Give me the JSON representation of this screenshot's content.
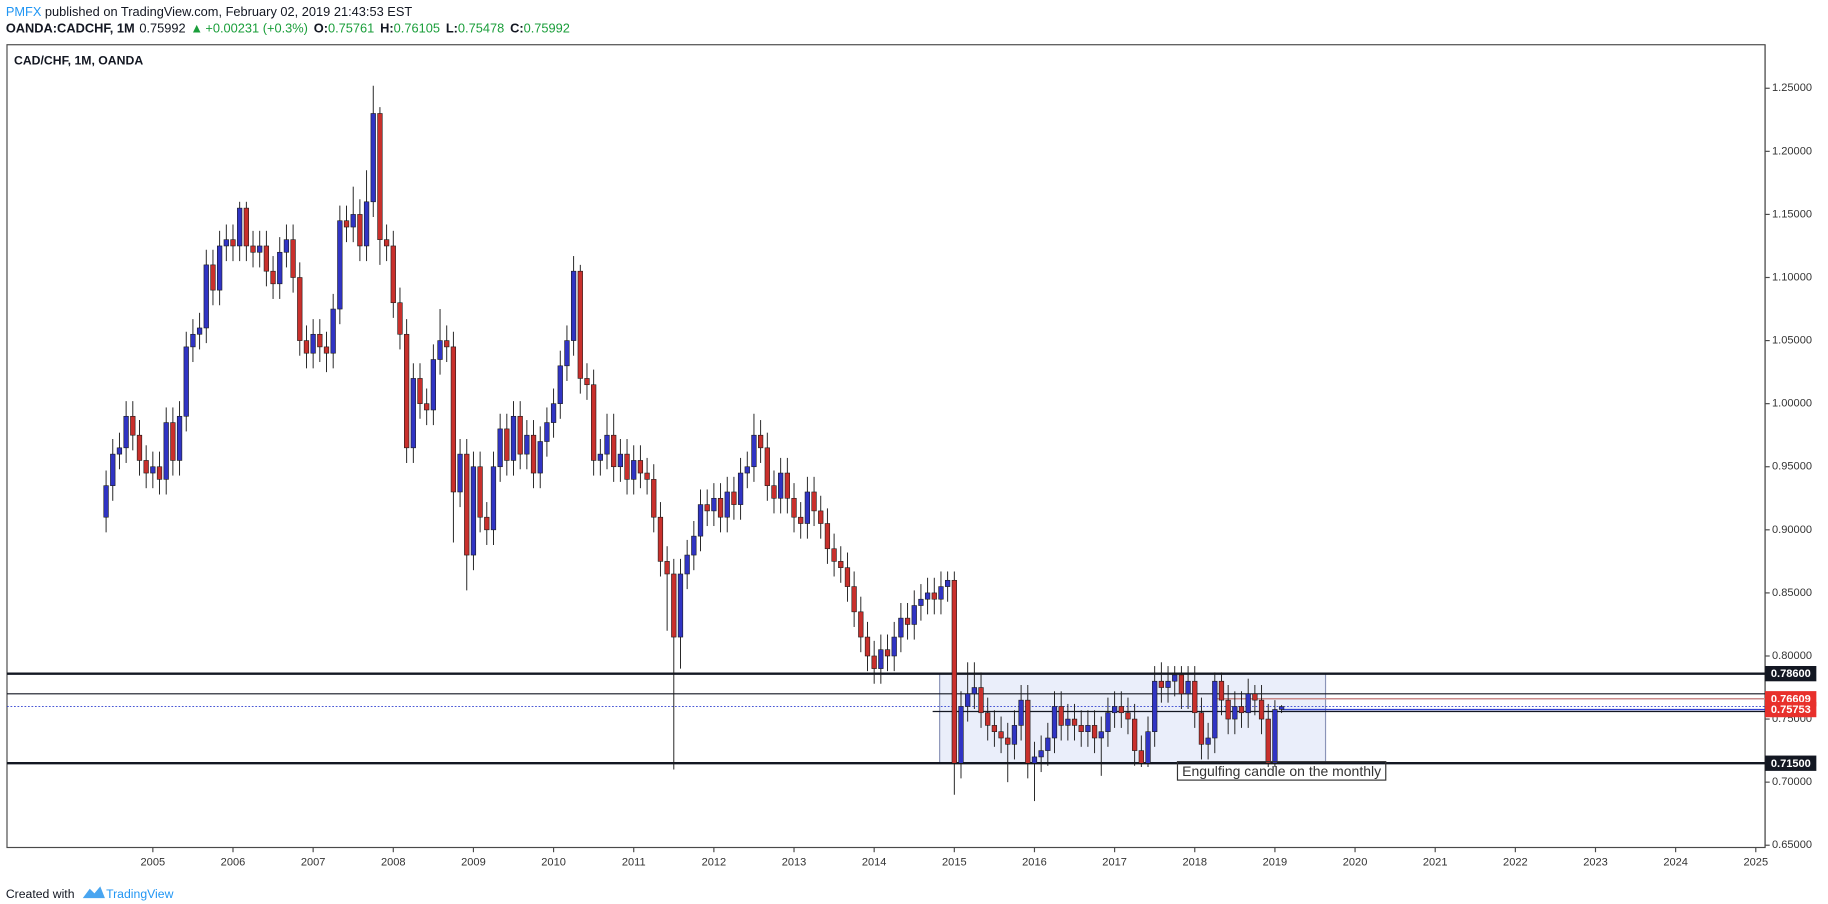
{
  "header": {
    "author": "PMFX",
    "published": "published on TradingView.com, February 02, 2019 21:43:53 EST",
    "symbol": "OANDA:CADCHF, 1M",
    "price": "0.75992",
    "arrow": "▲",
    "change": "+0.00231 (+0.3%)",
    "ohlc": [
      {
        "label": "O:",
        "value": "0.75761"
      },
      {
        "label": "H:",
        "value": "0.76105"
      },
      {
        "label": "L:",
        "value": "0.75478"
      },
      {
        "label": "C:",
        "value": "0.75992"
      }
    ]
  },
  "footer": {
    "created": "Created with",
    "brand": "TradingView"
  },
  "chart_data": {
    "type": "candlestick",
    "title": "CAD/CHF, 1M, OANDA",
    "up_color": "#3034c4",
    "down_color": "#c9302c",
    "categories": [
      null,
      null,
      null,
      null,
      null,
      null,
      null,
      "2005",
      null,
      null,
      null,
      null,
      null,
      null,
      null,
      null,
      null,
      null,
      null,
      "2006",
      null,
      null,
      null,
      null,
      null,
      null,
      null,
      null,
      null,
      null,
      null,
      "2007",
      null,
      null,
      null,
      null,
      null,
      null,
      null,
      null,
      null,
      null,
      null,
      "2008",
      null,
      null,
      null,
      null,
      null,
      null,
      null,
      null,
      null,
      null,
      null,
      "2009",
      null,
      null,
      null,
      null,
      null,
      null,
      null,
      null,
      null,
      null,
      null,
      "2010",
      null,
      null,
      null,
      null,
      null,
      null,
      null,
      null,
      null,
      null,
      null,
      "2011",
      null,
      null,
      null,
      null,
      null,
      null,
      null,
      null,
      null,
      null,
      null,
      "2012",
      null,
      null,
      null,
      null,
      null,
      null,
      null,
      null,
      null,
      null,
      null,
      "2013",
      null,
      null,
      null,
      null,
      null,
      null,
      null,
      null,
      null,
      null,
      null,
      "2014",
      null,
      null,
      null,
      null,
      null,
      null,
      null,
      null,
      null,
      null,
      null,
      "2015",
      null,
      null,
      null,
      null,
      null,
      null,
      null,
      null,
      null,
      null,
      null,
      "2016",
      null,
      null,
      null,
      null,
      null,
      null,
      null,
      null,
      null,
      null,
      null,
      "2017",
      null,
      null,
      null,
      null,
      null,
      null,
      null,
      null,
      null,
      null,
      null,
      "2018",
      null,
      null,
      null,
      null,
      null,
      null,
      null,
      null,
      null,
      null,
      null,
      "2019",
      null,
      null,
      null,
      null,
      null,
      null,
      null,
      null,
      null,
      null,
      null,
      "2020",
      null,
      null,
      null,
      null,
      null,
      null,
      null,
      null,
      null,
      null,
      null,
      "2021",
      null,
      null,
      null,
      null,
      null,
      null,
      null,
      null,
      null,
      null,
      null,
      "2022",
      null,
      null,
      null,
      null,
      null,
      null,
      null,
      null,
      null,
      null,
      null,
      "2023",
      null,
      null,
      null,
      null,
      null,
      null,
      null,
      null,
      null,
      null,
      null,
      "2024",
      null,
      null,
      null,
      null,
      null,
      null,
      null,
      null,
      null,
      null,
      null,
      "2025",
      null
    ],
    "open": [
      0.91,
      0.935,
      0.96,
      0.965,
      0.99,
      0.975,
      0.955,
      0.945,
      0.95,
      0.94,
      0.985,
      0.955,
      0.99,
      1.045,
      1.055,
      1.06,
      1.11,
      1.09,
      1.125,
      1.13,
      1.125,
      1.155,
      1.125,
      1.12,
      1.125,
      1.105,
      1.095,
      1.12,
      1.13,
      1.1,
      1.05,
      1.04,
      1.055,
      1.045,
      1.04,
      1.075,
      1.145,
      1.14,
      1.15,
      1.125,
      1.16,
      1.23,
      1.13,
      1.125,
      1.08,
      1.055,
      0.965,
      1.02,
      1.0,
      0.995,
      1.035,
      1.05,
      1.045,
      0.93,
      0.96,
      0.88,
      0.95,
      0.91,
      0.9,
      0.95,
      0.98,
      0.955,
      0.99,
      0.96,
      0.975,
      0.945,
      0.97,
      0.985,
      1.0,
      1.03,
      1.05,
      1.105,
      1.02,
      1.015,
      0.955,
      0.96,
      0.975,
      0.95,
      0.96,
      0.94,
      0.955,
      0.945,
      0.94,
      0.91,
      0.875,
      0.865,
      0.815,
      0.865,
      0.88,
      0.895,
      0.92,
      0.915,
      0.925,
      0.91,
      0.93,
      0.92,
      0.945,
      0.95,
      0.975,
      0.965,
      0.935,
      0.925,
      0.945,
      0.925,
      0.91,
      0.905,
      0.93,
      0.915,
      0.905,
      0.885,
      0.875,
      0.87,
      0.855,
      0.835,
      0.815,
      0.8,
      0.79,
      0.805,
      0.8,
      0.815,
      0.83,
      0.825,
      0.84,
      0.845,
      0.85,
      0.845,
      0.855,
      0.86,
      0.715,
      0.76,
      0.77,
      0.775,
      0.755,
      0.745,
      0.74,
      0.735,
      0.73,
      0.745,
      0.765,
      0.715,
      0.72,
      0.725,
      0.735,
      0.76,
      0.745,
      0.75,
      0.745,
      0.74,
      0.745,
      0.735,
      0.74,
      0.755,
      0.76,
      0.755,
      0.75,
      0.725,
      0.715,
      0.74,
      0.78,
      0.775,
      0.78,
      0.785,
      0.77,
      0.78,
      0.755,
      0.73,
      0.735,
      0.78,
      0.765,
      0.75,
      0.76,
      0.755,
      0.77,
      0.765,
      0.75,
      0.715,
      0.75761,
      null,
      null,
      null,
      null,
      null,
      null,
      null,
      null,
      null,
      null,
      null,
      null,
      null,
      null,
      null,
      null,
      null,
      null,
      null,
      null,
      null,
      null,
      null,
      null,
      null,
      null,
      null,
      null,
      null,
      null,
      null,
      null,
      null,
      null,
      null,
      null,
      null,
      null,
      null,
      null,
      null,
      null,
      null,
      null,
      null,
      null,
      null,
      null,
      null,
      null,
      null,
      null,
      null,
      null,
      null,
      null,
      null,
      null,
      null,
      null,
      null,
      null,
      null,
      null,
      null,
      null,
      null,
      null,
      null,
      null,
      null,
      null
    ],
    "high": [
      0.947,
      0.972,
      0.977,
      1.002,
      1.002,
      0.987,
      0.967,
      0.962,
      0.962,
      0.997,
      0.997,
      1.002,
      1.057,
      1.067,
      1.072,
      1.122,
      1.122,
      1.137,
      1.142,
      1.142,
      1.16,
      1.16,
      1.137,
      1.137,
      1.137,
      1.117,
      1.132,
      1.142,
      1.142,
      1.112,
      1.062,
      1.067,
      1.067,
      1.057,
      1.087,
      1.157,
      1.157,
      1.172,
      1.162,
      1.185,
      1.252,
      1.235,
      1.142,
      1.137,
      1.092,
      1.067,
      1.032,
      1.032,
      1.012,
      1.047,
      1.075,
      1.062,
      1.057,
      0.972,
      0.972,
      0.962,
      0.962,
      0.922,
      0.962,
      0.992,
      0.992,
      1.002,
      1.002,
      0.987,
      0.987,
      0.982,
      0.997,
      1.012,
      1.042,
      1.062,
      1.117,
      1.11,
      1.032,
      1.027,
      0.972,
      0.992,
      0.992,
      0.972,
      0.972,
      0.967,
      0.967,
      0.957,
      0.952,
      0.922,
      0.887,
      0.877,
      0.877,
      0.892,
      0.907,
      0.932,
      0.932,
      0.937,
      0.937,
      0.942,
      0.942,
      0.957,
      0.962,
      0.992,
      0.987,
      0.977,
      0.947,
      0.957,
      0.957,
      0.937,
      0.922,
      0.942,
      0.942,
      0.927,
      0.917,
      0.897,
      0.887,
      0.882,
      0.867,
      0.847,
      0.827,
      0.812,
      0.817,
      0.817,
      0.827,
      0.842,
      0.842,
      0.852,
      0.857,
      0.862,
      0.862,
      0.867,
      0.867,
      0.867,
      0.772,
      0.795,
      0.795,
      0.787,
      0.767,
      0.757,
      0.752,
      0.747,
      0.757,
      0.777,
      0.777,
      0.732,
      0.737,
      0.747,
      0.772,
      0.772,
      0.762,
      0.762,
      0.757,
      0.757,
      0.757,
      0.752,
      0.767,
      0.772,
      0.772,
      0.767,
      0.762,
      0.737,
      0.752,
      0.792,
      0.795,
      0.792,
      0.792,
      0.792,
      0.792,
      0.792,
      0.767,
      0.747,
      0.787,
      0.787,
      0.777,
      0.772,
      0.772,
      0.782,
      0.777,
      0.777,
      0.762,
      0.765,
      0.76105,
      null,
      null,
      null,
      null,
      null,
      null,
      null,
      null,
      null,
      null,
      null,
      null,
      null,
      null,
      null,
      null,
      null,
      null,
      null,
      null,
      null,
      null,
      null,
      null,
      null,
      null,
      null,
      null,
      null,
      null,
      null,
      null,
      null,
      null,
      null,
      null,
      null,
      null,
      null,
      null,
      null,
      null,
      null,
      null,
      null,
      null,
      null,
      null,
      null,
      null,
      null,
      null,
      null,
      null,
      null,
      null,
      null,
      null,
      null,
      null,
      null,
      null,
      null,
      null,
      null,
      null,
      null,
      null,
      null,
      null,
      null,
      null
    ],
    "low": [
      0.898,
      0.923,
      0.948,
      0.953,
      0.963,
      0.943,
      0.933,
      0.933,
      0.928,
      0.928,
      0.943,
      0.943,
      0.978,
      1.033,
      1.043,
      1.048,
      1.078,
      1.078,
      1.113,
      1.113,
      1.113,
      1.113,
      1.108,
      1.108,
      1.093,
      1.083,
      1.083,
      1.108,
      1.088,
      1.038,
      1.028,
      1.028,
      1.033,
      1.025,
      1.028,
      1.063,
      1.128,
      1.128,
      1.113,
      1.113,
      1.148,
      1.11,
      1.113,
      1.068,
      1.043,
      0.953,
      0.953,
      0.988,
      0.983,
      0.983,
      1.023,
      1.033,
      0.89,
      0.918,
      0.852,
      0.868,
      0.898,
      0.888,
      0.888,
      0.938,
      0.943,
      0.943,
      0.948,
      0.948,
      0.933,
      0.933,
      0.958,
      0.973,
      0.988,
      1.018,
      1.038,
      1.008,
      1.003,
      0.943,
      0.943,
      0.948,
      0.938,
      0.938,
      0.928,
      0.928,
      0.933,
      0.928,
      0.898,
      0.863,
      0.82,
      0.71,
      0.79,
      0.853,
      0.868,
      0.883,
      0.903,
      0.903,
      0.898,
      0.898,
      0.908,
      0.908,
      0.933,
      0.938,
      0.953,
      0.923,
      0.913,
      0.913,
      0.913,
      0.898,
      0.893,
      0.893,
      0.903,
      0.893,
      0.873,
      0.863,
      0.858,
      0.843,
      0.823,
      0.803,
      0.788,
      0.778,
      0.778,
      0.788,
      0.788,
      0.803,
      0.813,
      0.813,
      0.828,
      0.833,
      0.833,
      0.833,
      0.843,
      0.69,
      0.703,
      0.748,
      0.758,
      0.743,
      0.733,
      0.728,
      0.723,
      0.7,
      0.718,
      0.733,
      0.703,
      0.685,
      0.708,
      0.713,
      0.723,
      0.733,
      0.733,
      0.733,
      0.728,
      0.728,
      0.723,
      0.705,
      0.728,
      0.743,
      0.743,
      0.738,
      0.713,
      0.712,
      0.712,
      0.728,
      0.763,
      0.763,
      0.768,
      0.758,
      0.758,
      0.743,
      0.718,
      0.718,
      0.723,
      0.753,
      0.738,
      0.738,
      0.743,
      0.743,
      0.753,
      0.738,
      0.712,
      0.712,
      0.75478,
      null,
      null,
      null,
      null,
      null,
      null,
      null,
      null,
      null,
      null,
      null,
      null,
      null,
      null,
      null,
      null,
      null,
      null,
      null,
      null,
      null,
      null,
      null,
      null,
      null,
      null,
      null,
      null,
      null,
      null,
      null,
      null,
      null,
      null,
      null,
      null,
      null,
      null,
      null,
      null,
      null,
      null,
      null,
      null,
      null,
      null,
      null,
      null,
      null,
      null,
      null,
      null,
      null,
      null,
      null,
      null,
      null,
      null,
      null,
      null,
      null,
      null,
      null,
      null,
      null,
      null,
      null,
      null,
      null,
      null,
      null,
      null
    ],
    "close": [
      0.935,
      0.96,
      0.965,
      0.99,
      0.975,
      0.955,
      0.945,
      0.95,
      0.94,
      0.985,
      0.955,
      0.99,
      1.045,
      1.055,
      1.06,
      1.11,
      1.09,
      1.125,
      1.13,
      1.125,
      1.155,
      1.125,
      1.12,
      1.125,
      1.105,
      1.095,
      1.12,
      1.13,
      1.1,
      1.05,
      1.04,
      1.055,
      1.045,
      1.04,
      1.075,
      1.145,
      1.14,
      1.15,
      1.125,
      1.16,
      1.23,
      1.13,
      1.125,
      1.08,
      1.055,
      0.965,
      1.02,
      1.0,
      0.995,
      1.035,
      1.05,
      1.045,
      0.93,
      0.96,
      0.88,
      0.95,
      0.91,
      0.9,
      0.95,
      0.98,
      0.955,
      0.99,
      0.96,
      0.975,
      0.945,
      0.97,
      0.985,
      1.0,
      1.03,
      1.05,
      1.105,
      1.02,
      1.015,
      0.955,
      0.96,
      0.975,
      0.95,
      0.96,
      0.94,
      0.955,
      0.945,
      0.94,
      0.91,
      0.875,
      0.865,
      0.815,
      0.865,
      0.88,
      0.895,
      0.92,
      0.915,
      0.925,
      0.91,
      0.93,
      0.92,
      0.945,
      0.95,
      0.975,
      0.965,
      0.935,
      0.925,
      0.945,
      0.925,
      0.91,
      0.905,
      0.93,
      0.915,
      0.905,
      0.885,
      0.875,
      0.87,
      0.855,
      0.835,
      0.815,
      0.8,
      0.79,
      0.805,
      0.8,
      0.815,
      0.83,
      0.825,
      0.84,
      0.845,
      0.85,
      0.845,
      0.855,
      0.86,
      0.715,
      0.76,
      0.77,
      0.775,
      0.755,
      0.745,
      0.74,
      0.735,
      0.73,
      0.745,
      0.765,
      0.715,
      0.72,
      0.725,
      0.735,
      0.76,
      0.745,
      0.75,
      0.745,
      0.74,
      0.745,
      0.735,
      0.74,
      0.755,
      0.76,
      0.755,
      0.75,
      0.725,
      0.715,
      0.74,
      0.78,
      0.775,
      0.78,
      0.785,
      0.77,
      0.78,
      0.755,
      0.73,
      0.735,
      0.78,
      0.765,
      0.75,
      0.76,
      0.755,
      0.77,
      0.765,
      0.75,
      0.715,
      0.75761,
      0.75992,
      null,
      null,
      null,
      null,
      null,
      null,
      null,
      null,
      null,
      null,
      null,
      null,
      null,
      null,
      null,
      null,
      null,
      null,
      null,
      null,
      null,
      null,
      null,
      null,
      null,
      null,
      null,
      null,
      null,
      null,
      null,
      null,
      null,
      null,
      null,
      null,
      null,
      null,
      null,
      null,
      null,
      null,
      null,
      null,
      null,
      null,
      null,
      null,
      null,
      null,
      null,
      null,
      null,
      null,
      null,
      null,
      null,
      null,
      null,
      null,
      null,
      null,
      null,
      null,
      null,
      null,
      null,
      null,
      null,
      null,
      null,
      null
    ],
    "ylim": [
      0.6482,
      1.2845
    ],
    "yticks": [
      {
        "value": 0.65,
        "label": "0.65000"
      },
      {
        "value": 0.7,
        "label": "0.70000"
      },
      {
        "value": 0.75,
        "label": "0.75000"
      },
      {
        "value": 0.8,
        "label": "0.80000"
      },
      {
        "value": 0.85,
        "label": "0.85000"
      },
      {
        "value": 0.9,
        "label": "0.90000"
      },
      {
        "value": 0.95,
        "label": "0.95000"
      },
      {
        "value": 1.0,
        "label": "1.00000"
      },
      {
        "value": 1.05,
        "label": "1.05000"
      },
      {
        "value": 1.1,
        "label": "1.10000"
      },
      {
        "value": 1.15,
        "label": "1.15000"
      },
      {
        "value": 1.2,
        "label": "1.20000"
      },
      {
        "value": 1.25,
        "label": "1.25000"
      }
    ],
    "grid": false,
    "levels": [
      {
        "value": 0.786,
        "label": "0.78600",
        "color": "#131722"
      },
      {
        "value": 0.76609,
        "label": "0.76609",
        "color": "#e8302b"
      },
      {
        "value": 0.75753,
        "label": "0.75753",
        "color": "#e8302b"
      },
      {
        "value": 0.715,
        "label": "0.71500",
        "color": "#131722"
      }
    ],
    "lines": [
      0.77,
      0.756
    ],
    "annotation": "Engulfing candle on the monthly"
  }
}
